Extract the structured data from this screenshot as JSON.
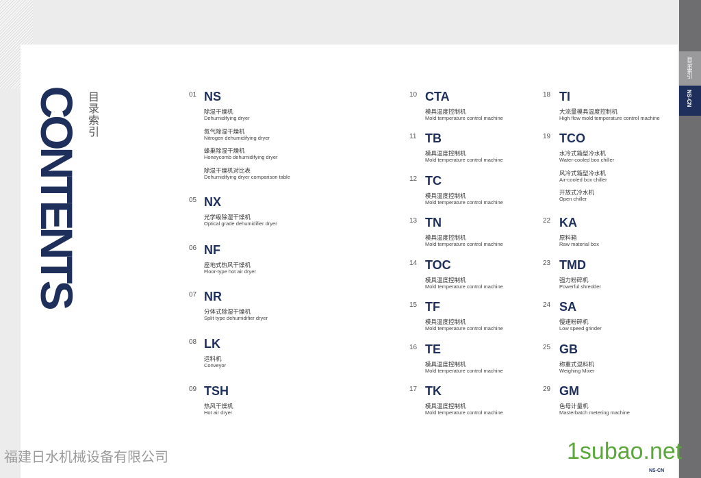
{
  "title": "CONTENTS",
  "subtitle": "目录索引",
  "sidebar": {
    "tabs": [
      "目录索引",
      "NS-CN"
    ]
  },
  "footer_brand": "NS-CN",
  "watermarks": [
    "福建日水机械设备有限公司",
    "1subao.net"
  ],
  "columns": [
    [
      {
        "num": "01",
        "code": "NS",
        "items": [
          {
            "cn": "除湿干燥机",
            "en": "Dehumidifying dryer"
          },
          {
            "cn": "氮气除湿干燥机",
            "en": "Nitrogen dehumidifying dryer"
          },
          {
            "cn": "蜂巢除湿干燥机",
            "en": "Honeycomb dehumidifying dryer"
          },
          {
            "cn": "除湿干燥机对比表",
            "en": "Dehumidifying dryer comparison table"
          }
        ]
      },
      {
        "num": "05",
        "code": "NX",
        "items": [
          {
            "cn": "光学级除湿干燥机",
            "en": "Optical grade dehumidifier dryer"
          }
        ]
      },
      {
        "num": "06",
        "code": "NF",
        "items": [
          {
            "cn": "座地式热风干燥机",
            "en": "Floor-type hot air dryer"
          }
        ]
      },
      {
        "num": "07",
        "code": "NR",
        "items": [
          {
            "cn": "分体式除湿干燥机",
            "en": "Split type dehumidifier dryer"
          }
        ]
      },
      {
        "num": "08",
        "code": "LK",
        "items": [
          {
            "cn": "运料机",
            "en": "Conveyor"
          }
        ]
      },
      {
        "num": "09",
        "code": "TSH",
        "items": [
          {
            "cn": "热风干燥机",
            "en": "Hot air dryer"
          }
        ]
      }
    ],
    [
      {
        "num": "10",
        "code": "CTA",
        "items": [
          {
            "cn": "模具温度控制机",
            "en": "Mold temperature control machine"
          }
        ]
      },
      {
        "num": "11",
        "code": "TB",
        "items": [
          {
            "cn": "模具温度控制机",
            "en": "Mold temperature control machine"
          }
        ]
      },
      {
        "num": "12",
        "code": "TC",
        "items": [
          {
            "cn": "模具温度控制机",
            "en": "Mold temperature control machine"
          }
        ]
      },
      {
        "num": "13",
        "code": "TN",
        "items": [
          {
            "cn": "模具温度控制机",
            "en": "Mold temperature control machine"
          }
        ]
      },
      {
        "num": "14",
        "code": "TOC",
        "items": [
          {
            "cn": "模具温度控制机",
            "en": "Mold temperature control machine"
          }
        ]
      },
      {
        "num": "15",
        "code": "TF",
        "items": [
          {
            "cn": "模具温度控制机",
            "en": "Mold temperature control machine"
          }
        ]
      },
      {
        "num": "16",
        "code": "TE",
        "items": [
          {
            "cn": "模具温度控制机",
            "en": "Mold temperature control machine"
          }
        ]
      },
      {
        "num": "17",
        "code": "TK",
        "items": [
          {
            "cn": "模具温度控制机",
            "en": "Mold temperature control machine"
          }
        ]
      }
    ],
    [
      {
        "num": "18",
        "code": "TI",
        "items": [
          {
            "cn": "大流量模具温度控制机",
            "en": "High flow mold temperature control machine"
          }
        ]
      },
      {
        "num": "19",
        "code": "TCO",
        "items": [
          {
            "cn": "水冷式箱型冷水机",
            "en": "Water-cooled box chiller"
          },
          {
            "cn": "风冷式箱型冷水机",
            "en": "Air-cooled box chiller"
          },
          {
            "cn": "开放式冷水机",
            "en": "Open chiller"
          }
        ]
      },
      {
        "num": "22",
        "code": "KA",
        "items": [
          {
            "cn": "原料箱",
            "en": "Raw material box"
          }
        ]
      },
      {
        "num": "23",
        "code": "TMD",
        "items": [
          {
            "cn": "强力粉碎机",
            "en": "Powerful shredder"
          }
        ]
      },
      {
        "num": "24",
        "code": "SA",
        "items": [
          {
            "cn": "慢速粉碎机",
            "en": "Low speed grinder"
          }
        ]
      },
      {
        "num": "25",
        "code": "GB",
        "items": [
          {
            "cn": "称重式混料机",
            "en": "Weighing Mixer"
          }
        ]
      },
      {
        "num": "29",
        "code": "GM",
        "items": [
          {
            "cn": "色母计量机",
            "en": "Masterbatch metering machine"
          }
        ]
      }
    ]
  ]
}
